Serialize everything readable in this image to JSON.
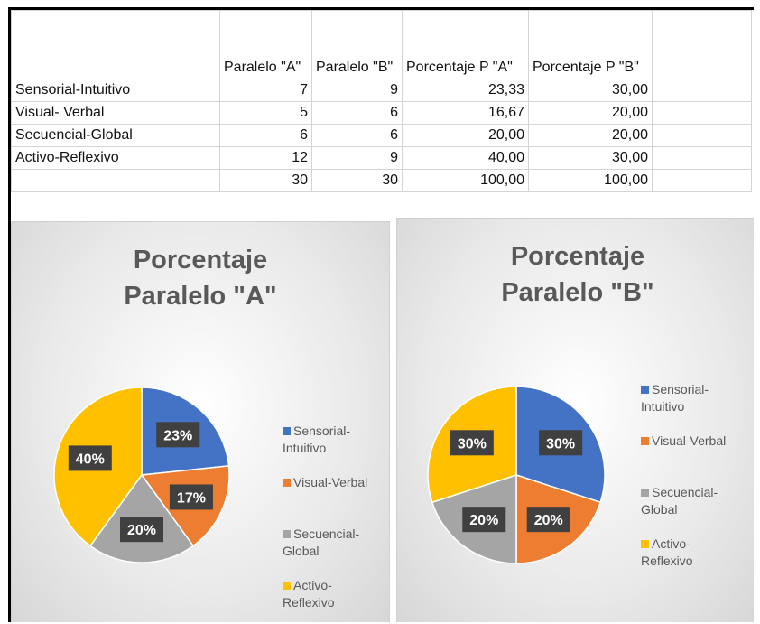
{
  "table": {
    "header": [
      "Paralelo \"A\"",
      "Paralelo \"B\"",
      "Porcentaje P \"A\"",
      "Porcentaje P \"B\""
    ],
    "rows": [
      [
        "Sensorial-Intuitivo",
        "7",
        "9",
        "23,33",
        "30,00"
      ],
      [
        "Visual- Verbal",
        "5",
        "6",
        "16,67",
        "20,00"
      ],
      [
        "Secuencial-Global",
        "6",
        "6",
        "20,00",
        "20,00"
      ],
      [
        "Activo-Reflexivo",
        "12",
        "9",
        "40,00",
        "30,00"
      ],
      [
        null,
        "30",
        "30",
        "100,00",
        "100,00"
      ]
    ]
  },
  "chart_data": [
    {
      "type": "pie",
      "title": "Porcentaje Paralelo \"A\"",
      "categories": [
        "Sensorial-Intuitivo",
        "Visual-Verbal",
        "Secuencial-Global",
        "Activo-Reflexivo"
      ],
      "values": [
        23.33,
        16.67,
        20,
        40
      ],
      "value_labels": [
        "23%",
        "17%",
        "20%",
        "40%"
      ],
      "colors": [
        "#4472c4",
        "#ed7d31",
        "#a5a5a5",
        "#ffc000"
      ],
      "legend": "right"
    },
    {
      "type": "pie",
      "title": "Porcentaje Paralelo \"B\"",
      "categories": [
        "Sensorial-Intuitivo",
        "Visual-Verbal",
        "Secuencial-Global",
        "Activo-Reflexivo"
      ],
      "values": [
        30,
        20,
        20,
        30
      ],
      "value_labels": [
        "30%",
        "20%",
        "20%",
        "30%"
      ],
      "colors": [
        "#4472c4",
        "#ed7d31",
        "#a5a5a5",
        "#ffc000"
      ],
      "legend": "right"
    }
  ]
}
